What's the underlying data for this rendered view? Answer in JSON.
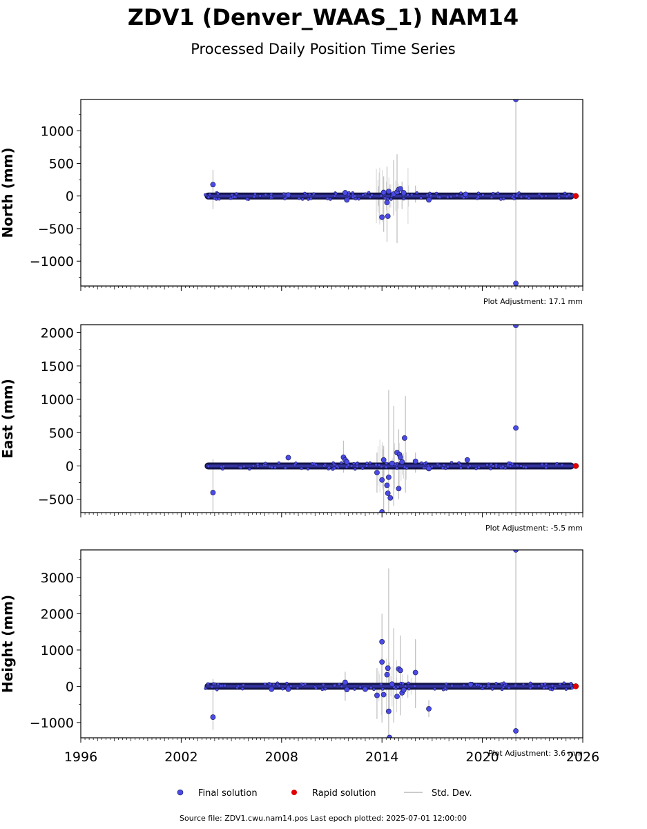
{
  "header": {
    "title": "ZDV1 (Denver_WAAS_1) NAM14",
    "subtitle": "Processed Daily Position Time Series"
  },
  "legend": {
    "final": "Final solution",
    "rapid": "Rapid solution",
    "std": "Std. Dev."
  },
  "footer": "Source file: ZDV1.cwu.nam14.pos  Last epoch plotted: 2025-07-01 12:00:00",
  "colors": {
    "final_fill": "#4a4ae6",
    "final_edge": "#15154a",
    "rapid": "#e00000",
    "std": "#b8b8b8"
  },
  "chart_data": {
    "type": "scatter",
    "xlim": [
      1996,
      2026
    ],
    "xticks": [
      "1996",
      "2002",
      "2008",
      "2014",
      "2020",
      "2026"
    ],
    "data_start": 2003.4,
    "data_end": 2025.5,
    "panels": [
      {
        "ylabel": "North (mm)",
        "ylim": [
          -1380,
          1480
        ],
        "yticks": [
          -1000,
          -500,
          0,
          500,
          1000
        ],
        "ytick_labels": [
          "−1000",
          "−500",
          "0",
          "500",
          "1000"
        ],
        "adjustment": "Plot Adjustment: 17.1 mm",
        "outliers": [
          [
            2003.9,
            175
          ],
          [
            2008.4,
            15
          ],
          [
            2011.8,
            50
          ],
          [
            2011.9,
            -60
          ],
          [
            2014.0,
            -325
          ],
          [
            2014.1,
            55
          ],
          [
            2014.3,
            -100
          ],
          [
            2014.35,
            -310
          ],
          [
            2014.4,
            70
          ],
          [
            2014.7,
            30
          ],
          [
            2014.9,
            60
          ],
          [
            2015.0,
            100
          ],
          [
            2015.1,
            110
          ],
          [
            2015.3,
            50
          ],
          [
            2016.8,
            -60
          ],
          [
            2019.0,
            25
          ],
          [
            2022.0,
            1480
          ],
          [
            2022.0,
            -1340
          ]
        ],
        "stddev": [
          [
            2003.9,
            -200,
            400
          ],
          [
            2013.8,
            -150,
            150
          ],
          [
            2014.1,
            -550,
            300
          ],
          [
            2014.3,
            -700,
            450
          ],
          [
            2014.7,
            -300,
            550
          ],
          [
            2014.9,
            -720,
            640
          ],
          [
            2015.2,
            -200,
            220
          ],
          [
            2016.0,
            -100,
            160
          ],
          [
            2022.0,
            -1340,
            1480
          ]
        ]
      },
      {
        "ylabel": "East (mm)",
        "ylim": [
          -700,
          2120
        ],
        "yticks": [
          -500,
          0,
          500,
          1000,
          1500,
          2000
        ],
        "ytick_labels": [
          "−500",
          "0",
          "500",
          "1000",
          "1500",
          "2000"
        ],
        "adjustment": "Plot Adjustment: -5.5 mm",
        "outliers": [
          [
            2003.9,
            -400
          ],
          [
            2008.4,
            125
          ],
          [
            2011.7,
            130
          ],
          [
            2011.8,
            90
          ],
          [
            2011.9,
            60
          ],
          [
            2013.7,
            -100
          ],
          [
            2014.0,
            -690
          ],
          [
            2014.0,
            -210
          ],
          [
            2014.1,
            90
          ],
          [
            2014.3,
            -290
          ],
          [
            2014.35,
            -410
          ],
          [
            2014.4,
            -170
          ],
          [
            2014.5,
            -480
          ],
          [
            2014.6,
            40
          ],
          [
            2014.9,
            200
          ],
          [
            2015.0,
            -340
          ],
          [
            2015.05,
            170
          ],
          [
            2015.1,
            130
          ],
          [
            2015.2,
            60
          ],
          [
            2015.35,
            420
          ],
          [
            2016.0,
            70
          ],
          [
            2016.8,
            -40
          ],
          [
            2019.1,
            90
          ],
          [
            2022.0,
            2110
          ],
          [
            2022.0,
            570
          ]
        ],
        "stddev": [
          [
            2003.9,
            -700,
            100
          ],
          [
            2011.7,
            -100,
            380
          ],
          [
            2013.7,
            -400,
            200
          ],
          [
            2014.1,
            -700,
            300
          ],
          [
            2014.4,
            -700,
            1140
          ],
          [
            2014.7,
            -600,
            900
          ],
          [
            2015.0,
            -500,
            550
          ],
          [
            2015.4,
            -400,
            1050
          ],
          [
            2016.0,
            -100,
            200
          ],
          [
            2022.0,
            -700,
            2120
          ]
        ]
      },
      {
        "ylabel": "Height (mm)",
        "ylim": [
          -1420,
          3760
        ],
        "yticks": [
          -1000,
          0,
          1000,
          2000,
          3000
        ],
        "ytick_labels": [
          "−1000",
          "0",
          "1000",
          "2000",
          "3000"
        ],
        "adjustment": "Plot Adjustment: 3.6 mm",
        "outliers": [
          [
            2003.9,
            -850
          ],
          [
            2007.4,
            -80
          ],
          [
            2008.4,
            -80
          ],
          [
            2011.8,
            110
          ],
          [
            2011.9,
            -90
          ],
          [
            2013.0,
            -80
          ],
          [
            2013.7,
            -250
          ],
          [
            2014.0,
            1230
          ],
          [
            2014.0,
            670
          ],
          [
            2014.1,
            -230
          ],
          [
            2014.3,
            320
          ],
          [
            2014.35,
            500
          ],
          [
            2014.4,
            -690
          ],
          [
            2014.45,
            -1410
          ],
          [
            2014.6,
            60
          ],
          [
            2014.9,
            -280
          ],
          [
            2015.0,
            480
          ],
          [
            2015.1,
            440
          ],
          [
            2015.2,
            -180
          ],
          [
            2015.3,
            -100
          ],
          [
            2016.0,
            380
          ],
          [
            2016.8,
            -620
          ],
          [
            2019.3,
            50
          ],
          [
            2022.0,
            3760
          ],
          [
            2022.0,
            -1230
          ]
        ],
        "stddev": [
          [
            2003.9,
            -1200,
            200
          ],
          [
            2011.8,
            -400,
            400
          ],
          [
            2013.7,
            -900,
            500
          ],
          [
            2014.0,
            -1000,
            2000
          ],
          [
            2014.4,
            -1420,
            3250
          ],
          [
            2014.7,
            -1000,
            1600
          ],
          [
            2015.1,
            -800,
            1400
          ],
          [
            2016.0,
            -600,
            1300
          ],
          [
            2016.8,
            -850,
            -380
          ],
          [
            2022.0,
            -1420,
            3760
          ]
        ]
      }
    ]
  }
}
